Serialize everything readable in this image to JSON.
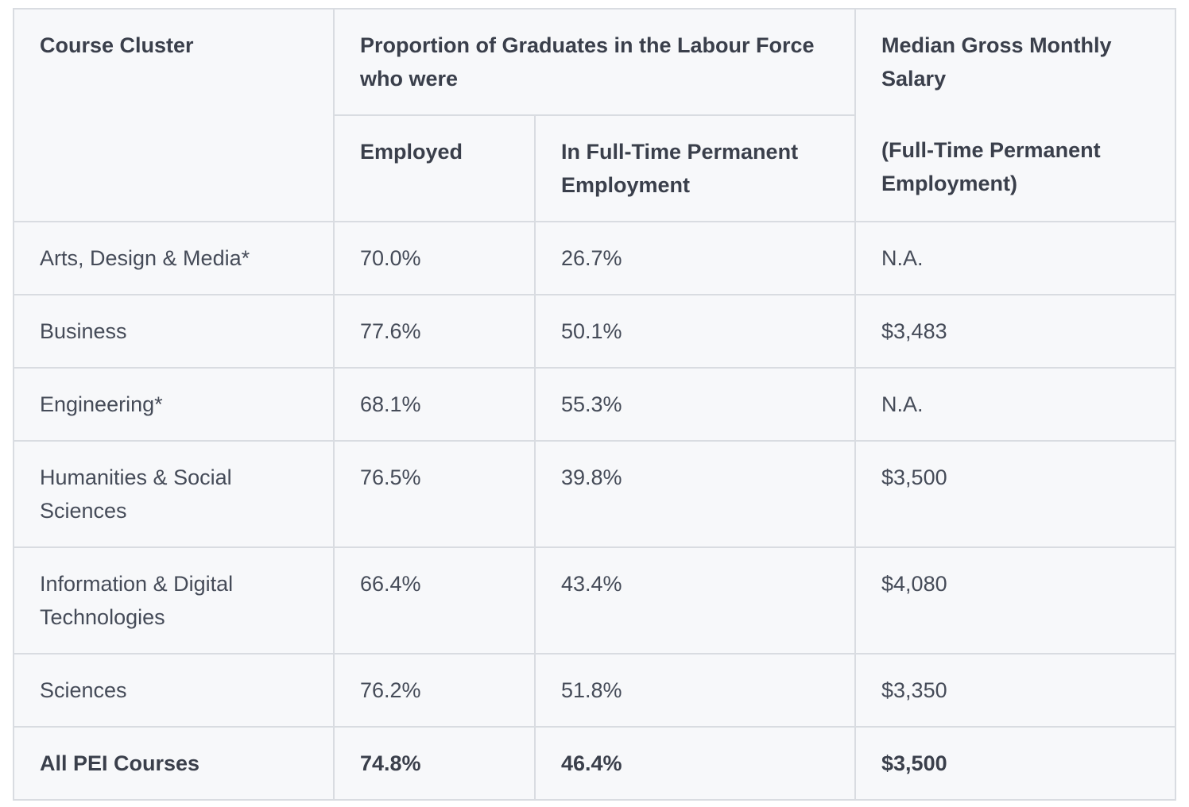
{
  "header": {
    "course_cluster": "Course Cluster",
    "proportion_group": "Proportion of Graduates in the Labour Force who were",
    "employed": "Employed",
    "full_time_permanent": "In Full-Time Permanent Employment",
    "median_salary": "Median Gross Monthly Salary",
    "median_salary_note": "(Full-Time Permanent Employment)"
  },
  "rows": [
    {
      "cluster": "Arts, Design & Media*",
      "employed": "70.0%",
      "ftpe": "26.7%",
      "salary": "N.A."
    },
    {
      "cluster": "Business",
      "employed": "77.6%",
      "ftpe": "50.1%",
      "salary": "$3,483"
    },
    {
      "cluster": "Engineering*",
      "employed": "68.1%",
      "ftpe": "55.3%",
      "salary": "N.A."
    },
    {
      "cluster": "Humanities & Social Sciences",
      "employed": "76.5%",
      "ftpe": "39.8%",
      "salary": "$3,500"
    },
    {
      "cluster": "Information & Digital Technologies",
      "employed": "66.4%",
      "ftpe": "43.4%",
      "salary": "$4,080"
    },
    {
      "cluster": "Sciences",
      "employed": "76.2%",
      "ftpe": "51.8%",
      "salary": "$3,350"
    }
  ],
  "total": {
    "cluster": "All PEI Courses",
    "employed": "74.8%",
    "ftpe": "46.4%",
    "salary": "$3,500"
  }
}
